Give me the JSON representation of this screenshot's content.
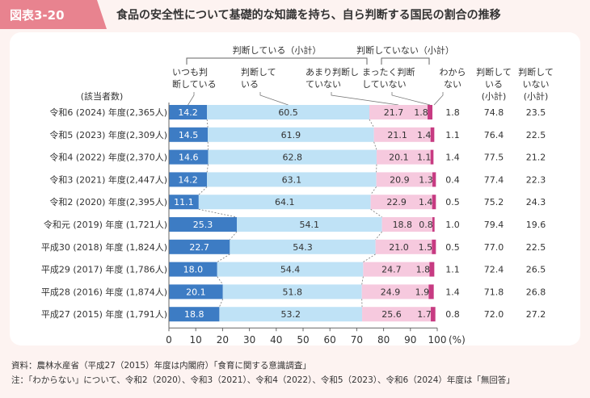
{
  "header": {
    "figure_label": "図表3-20",
    "title": "食品の安全性について基礎的な知識を持ち、自ら判断する国民の割合の推移"
  },
  "chart_data": {
    "type": "bar",
    "stacked": true,
    "orientation": "horizontal",
    "count_header": "(該当者数)",
    "categories": [
      "令和6 (2024) 年度(2,365人)",
      "令和5 (2023) 年度(2,309人)",
      "令和4 (2022) 年度(2,370人)",
      "令和3 (2021) 年度(2,447人)",
      "令和2 (2020) 年度(2,395人)",
      "令和元 (2019) 年度 (1,721人)",
      "平成30 (2018) 年度 (1,824人)",
      "平成29 (2017) 年度 (1,786人)",
      "平成28 (2016) 年度 (1,874人)",
      "平成27 (2015) 年度 (1,791人)"
    ],
    "series": [
      {
        "name": "いつも判断している",
        "color": "#3d7cc4",
        "values": [
          14.2,
          14.5,
          14.6,
          14.2,
          11.1,
          25.3,
          22.7,
          18.0,
          20.1,
          18.8
        ]
      },
      {
        "name": "判断している",
        "color": "#bfe2f6",
        "values": [
          60.5,
          61.9,
          62.8,
          63.1,
          64.1,
          54.1,
          54.3,
          54.4,
          51.8,
          53.2
        ]
      },
      {
        "name": "あまり判断していない",
        "color": "#f6c9de",
        "values": [
          21.7,
          21.1,
          20.1,
          20.9,
          22.9,
          18.8,
          21.0,
          24.7,
          24.9,
          25.6
        ]
      },
      {
        "name": "まったく判断していない",
        "color": "#c73b82",
        "values": [
          1.8,
          1.4,
          1.1,
          1.3,
          1.4,
          0.8,
          1.5,
          1.8,
          1.9,
          1.7
        ]
      }
    ],
    "wakaranai": {
      "header": "わからない",
      "values": [
        1.8,
        1.1,
        1.4,
        0.4,
        0.5,
        1.0,
        0.5,
        1.1,
        1.4,
        0.8
      ]
    },
    "subtotal_judge": {
      "header": "判断している(小計)",
      "values": [
        74.8,
        76.4,
        77.5,
        77.4,
        75.2,
        79.4,
        77.0,
        72.4,
        71.8,
        72.0
      ]
    },
    "subtotal_not": {
      "header": "判断していない(小計)",
      "values": [
        23.5,
        22.5,
        21.2,
        22.3,
        24.3,
        19.6,
        22.5,
        26.5,
        26.8,
        27.2
      ]
    },
    "bracket_labels": {
      "judge": "判断している（小計）",
      "not": "判断していない（小計）"
    },
    "xlim": [
      0,
      100
    ],
    "xticks": [
      0,
      10,
      20,
      30,
      40,
      50,
      60,
      70,
      80,
      90,
      100
    ],
    "xunit": "(%)"
  },
  "notes": {
    "source": "資料：農林水産省（平成27（2015）年度は内閣府）「食育に関する意識調査」",
    "note": "注：「わからない」について、令和2（2020）、令和3（2021）、令和4（2022）、令和5（2023）、令和6（2024）年度は「無回答」"
  }
}
